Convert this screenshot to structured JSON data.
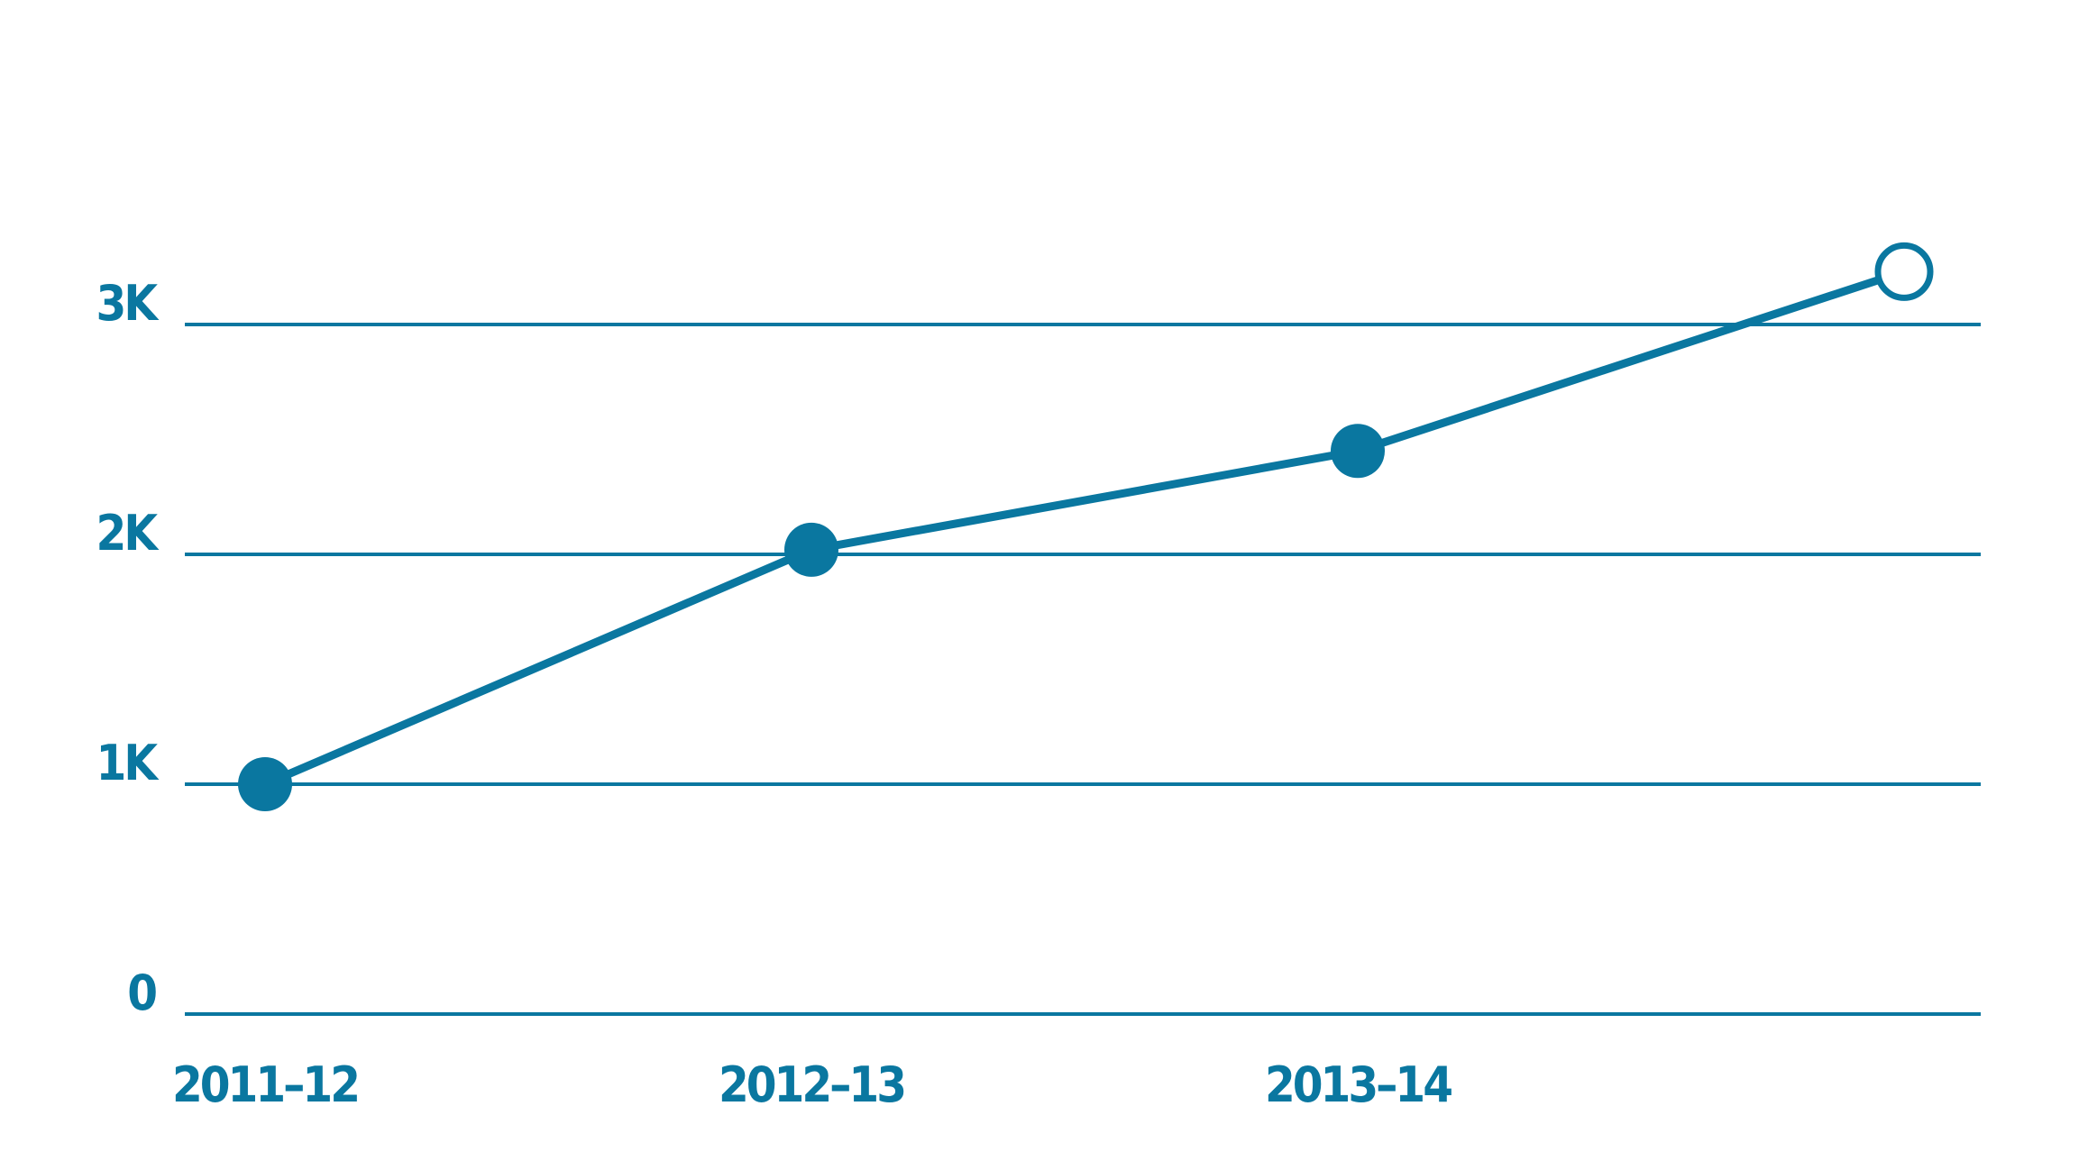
{
  "chart_data": {
    "type": "line",
    "categories": [
      "2011–12",
      "2012–13",
      "2013–14",
      ""
    ],
    "x_tick_labels": [
      "2011–12",
      "2012–13",
      "2013–14"
    ],
    "y_tick_labels": [
      "0",
      "1K",
      "2K",
      "3K"
    ],
    "y_ticks": [
      0,
      1000,
      2000,
      3000
    ],
    "ylim": [
      0,
      3000
    ],
    "grid": true,
    "series": [
      {
        "values": [
          1000,
          2020,
          2450,
          3230
        ],
        "marker_style": [
          "filled",
          "filled",
          "filled",
          "hollow"
        ]
      }
    ],
    "color": "#0a77a0"
  }
}
